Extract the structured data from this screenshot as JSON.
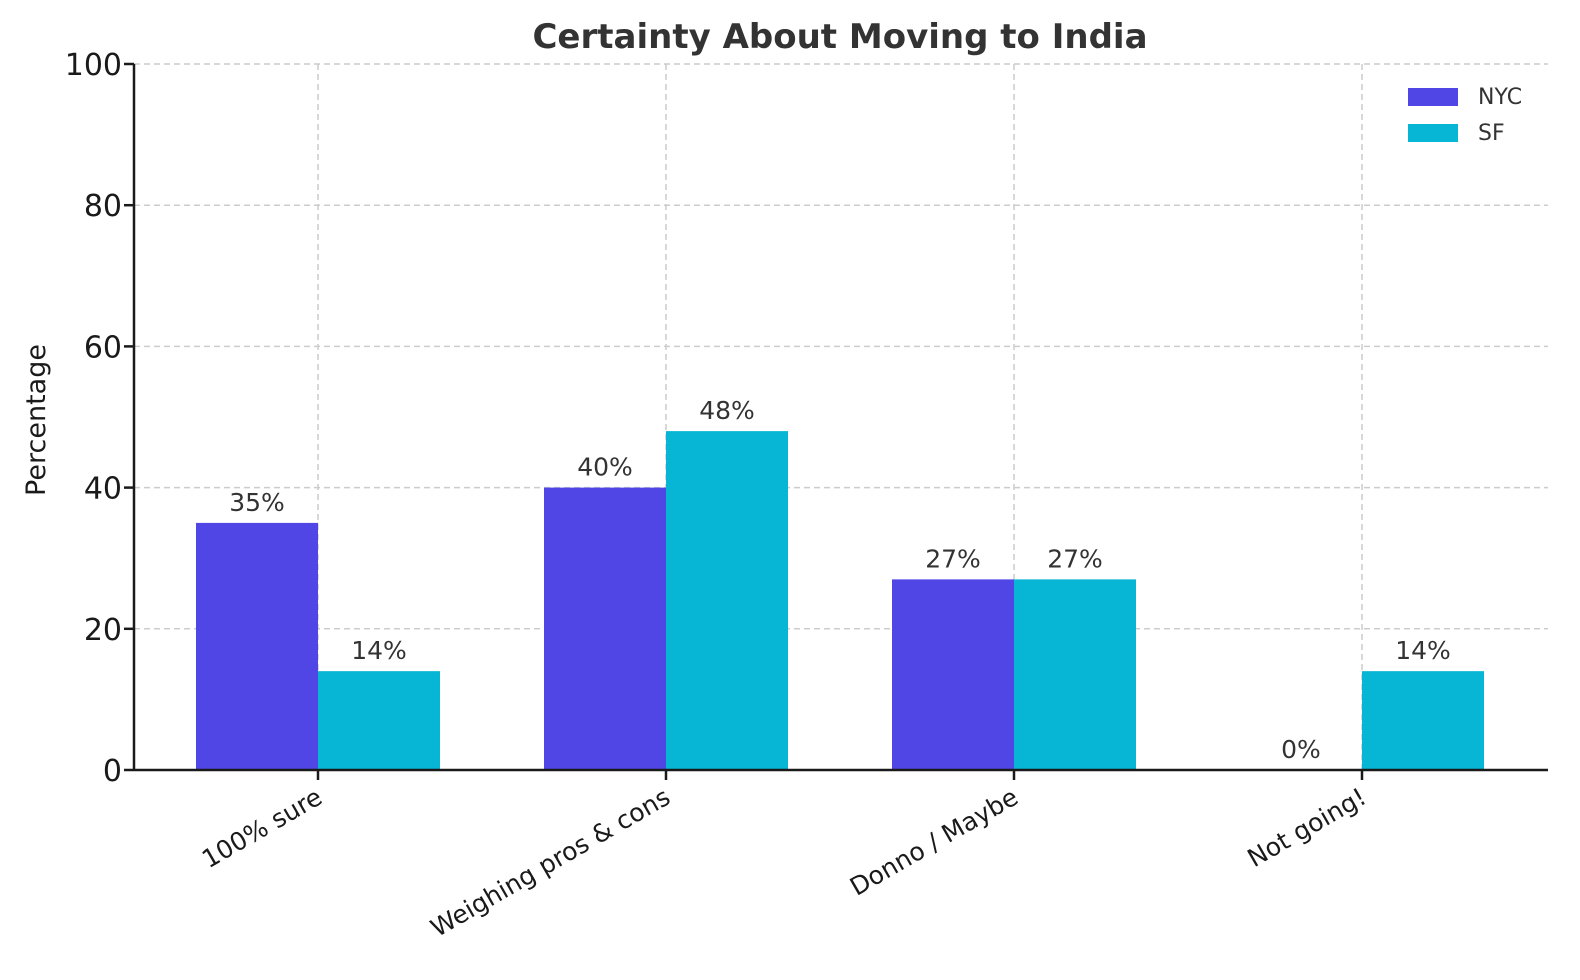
{
  "chart_data": {
    "type": "bar",
    "title": "Certainty About Moving to India",
    "xlabel": "",
    "ylabel": "Percentage",
    "ylim": [
      0,
      100
    ],
    "yticks": [
      "0",
      "20",
      "40",
      "60",
      "80",
      "100"
    ],
    "categories": [
      "100% sure",
      "Weighing pros & cons",
      "Donno / Maybe",
      "Not going!"
    ],
    "series": [
      {
        "name": "NYC",
        "color": "#5046e5",
        "values": [
          35,
          40,
          27,
          0
        ],
        "labels": [
          "35%",
          "40%",
          "27%",
          "0%"
        ]
      },
      {
        "name": "SF",
        "color": "#06b6d4",
        "values": [
          14,
          48,
          27,
          14
        ],
        "labels": [
          "14%",
          "48%",
          "27%",
          "14%"
        ]
      }
    ],
    "grid": true,
    "legend": "top-right"
  }
}
